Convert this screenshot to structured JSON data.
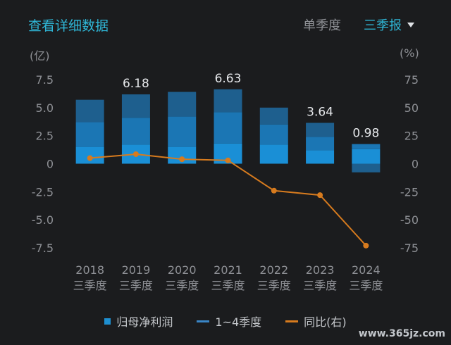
{
  "header": {
    "title_link": "查看详细数据",
    "tab_single_quarter": "单季度",
    "period_selected": "三季报"
  },
  "units": {
    "left": "(亿)",
    "right": "(%)"
  },
  "legend": {
    "net_profit": "归母净利润",
    "quarters": "1~4季度",
    "yoy": "同比(右)"
  },
  "watermark": "www.365jz.com",
  "chart_data": {
    "type": "bar",
    "categories": [
      "2018\n三季度",
      "2019\n三季度",
      "2020\n三季度",
      "2021\n三季度",
      "2022\n三季度",
      "2023\n三季度",
      "2024\n三季度"
    ],
    "series": [
      {
        "name": "归母净利润",
        "values": [
          5.7,
          6.18,
          6.4,
          6.63,
          5.0,
          3.64,
          0.98
        ]
      },
      {
        "name": "同比(右)",
        "values": [
          5.0,
          8.5,
          4.0,
          3.0,
          -24.0,
          -28.0,
          -73.0
        ]
      }
    ],
    "stacked_quarters": [
      [
        1.5,
        2.2,
        2.0
      ],
      [
        1.7,
        2.4,
        2.08
      ],
      [
        1.5,
        2.7,
        2.2
      ],
      [
        1.8,
        2.8,
        2.03
      ],
      [
        1.7,
        1.8,
        1.5
      ],
      [
        1.2,
        1.2,
        1.24
      ],
      [
        1.3,
        0.45,
        -0.77
      ]
    ],
    "data_labels": [
      "",
      "6.18",
      "",
      "6.63",
      "",
      "3.64",
      "0.98"
    ],
    "y_left": {
      "ticks": [
        7.5,
        5.0,
        2.5,
        0,
        -2.5,
        -5.0,
        -7.5
      ],
      "tick_labels": [
        "7.5",
        "5.0",
        "2.5",
        "0",
        "-2.5",
        "-5.0",
        "-7.5"
      ],
      "range": [
        -7.5,
        7.5
      ]
    },
    "y_right": {
      "ticks": [
        75,
        50,
        25,
        0,
        -25,
        -50,
        -75
      ],
      "tick_labels": [
        "75",
        "50",
        "25",
        "0",
        "-25",
        "-50",
        "-75"
      ],
      "range": [
        -75,
        75
      ]
    },
    "grid": false,
    "legend_position": "bottom",
    "colors": {
      "bar_q1": "#1a8fd6",
      "bar_q2": "#1b76b4",
      "bar_q3": "#1e5f8e",
      "line": "#d77b1e",
      "label": "#e6e8eb",
      "axis": "#8e9095"
    }
  }
}
